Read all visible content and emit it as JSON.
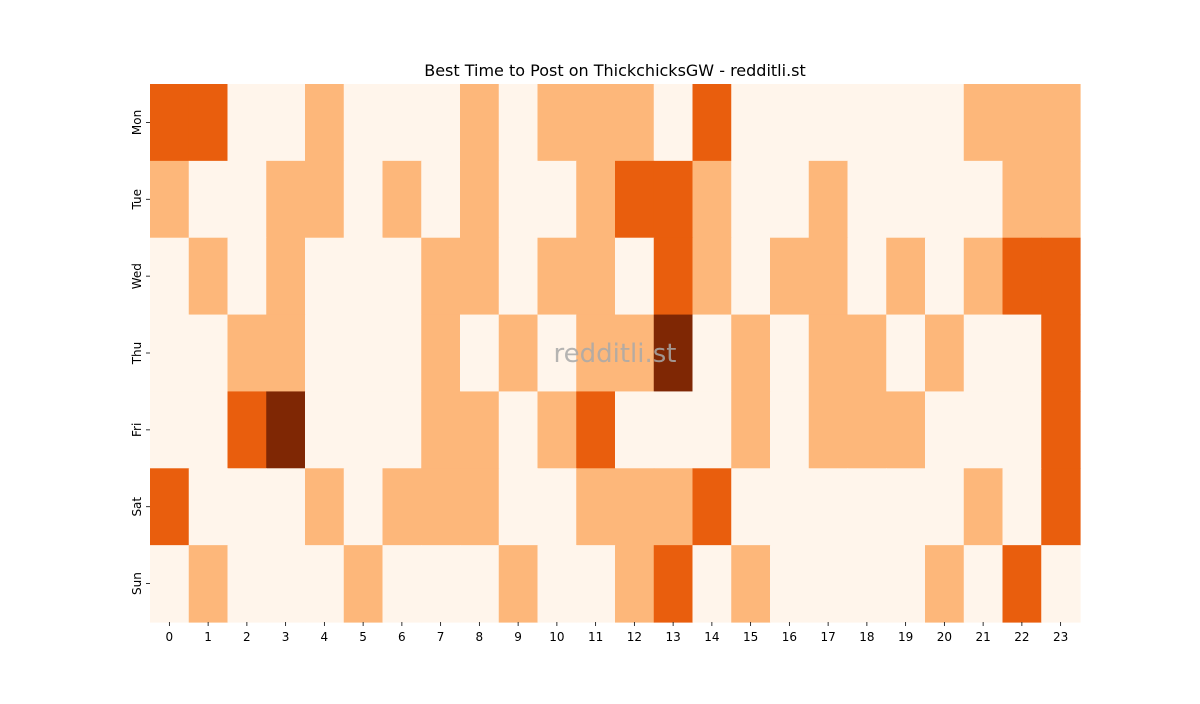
{
  "chart_data": {
    "type": "heatmap",
    "title": "Best Time to Post on ThickchicksGW - redditli.st",
    "watermark": "redditli.st",
    "x": [
      "0",
      "1",
      "2",
      "3",
      "4",
      "5",
      "6",
      "7",
      "8",
      "9",
      "10",
      "11",
      "12",
      "13",
      "14",
      "15",
      "16",
      "17",
      "18",
      "19",
      "20",
      "21",
      "22",
      "23"
    ],
    "y": [
      "Mon",
      "Tue",
      "Wed",
      "Thu",
      "Fri",
      "Sat",
      "Sun"
    ],
    "xlabel": "",
    "ylabel": "",
    "values": [
      [
        2,
        2,
        0,
        0,
        1,
        0,
        0,
        0,
        1,
        0,
        1,
        1,
        1,
        0,
        2,
        0,
        0,
        0,
        0,
        0,
        0,
        1,
        1,
        1
      ],
      [
        1,
        0,
        0,
        1,
        1,
        0,
        1,
        0,
        1,
        0,
        0,
        1,
        2,
        2,
        1,
        0,
        0,
        1,
        0,
        0,
        0,
        0,
        1,
        1
      ],
      [
        0,
        1,
        0,
        1,
        0,
        0,
        0,
        1,
        1,
        0,
        1,
        1,
        0,
        2,
        1,
        0,
        1,
        1,
        0,
        1,
        0,
        1,
        2,
        2
      ],
      [
        0,
        0,
        1,
        1,
        0,
        0,
        0,
        1,
        0,
        1,
        0,
        1,
        1,
        3,
        0,
        1,
        0,
        1,
        1,
        0,
        1,
        0,
        0,
        2
      ],
      [
        0,
        0,
        2,
        3,
        0,
        0,
        0,
        1,
        1,
        0,
        1,
        2,
        0,
        0,
        0,
        1,
        0,
        1,
        1,
        1,
        0,
        0,
        0,
        2
      ],
      [
        2,
        0,
        0,
        0,
        1,
        0,
        1,
        1,
        1,
        0,
        0,
        1,
        1,
        1,
        2,
        0,
        0,
        0,
        0,
        0,
        0,
        1,
        0,
        2
      ],
      [
        0,
        1,
        0,
        0,
        0,
        1,
        0,
        0,
        0,
        1,
        0,
        0,
        1,
        2,
        0,
        1,
        0,
        0,
        0,
        0,
        1,
        0,
        2,
        0
      ]
    ],
    "colorscale": [
      "#fff5eb",
      "#fdb77a",
      "#e95e0d",
      "#7f2704"
    ],
    "colorbar": false,
    "grid": false
  }
}
